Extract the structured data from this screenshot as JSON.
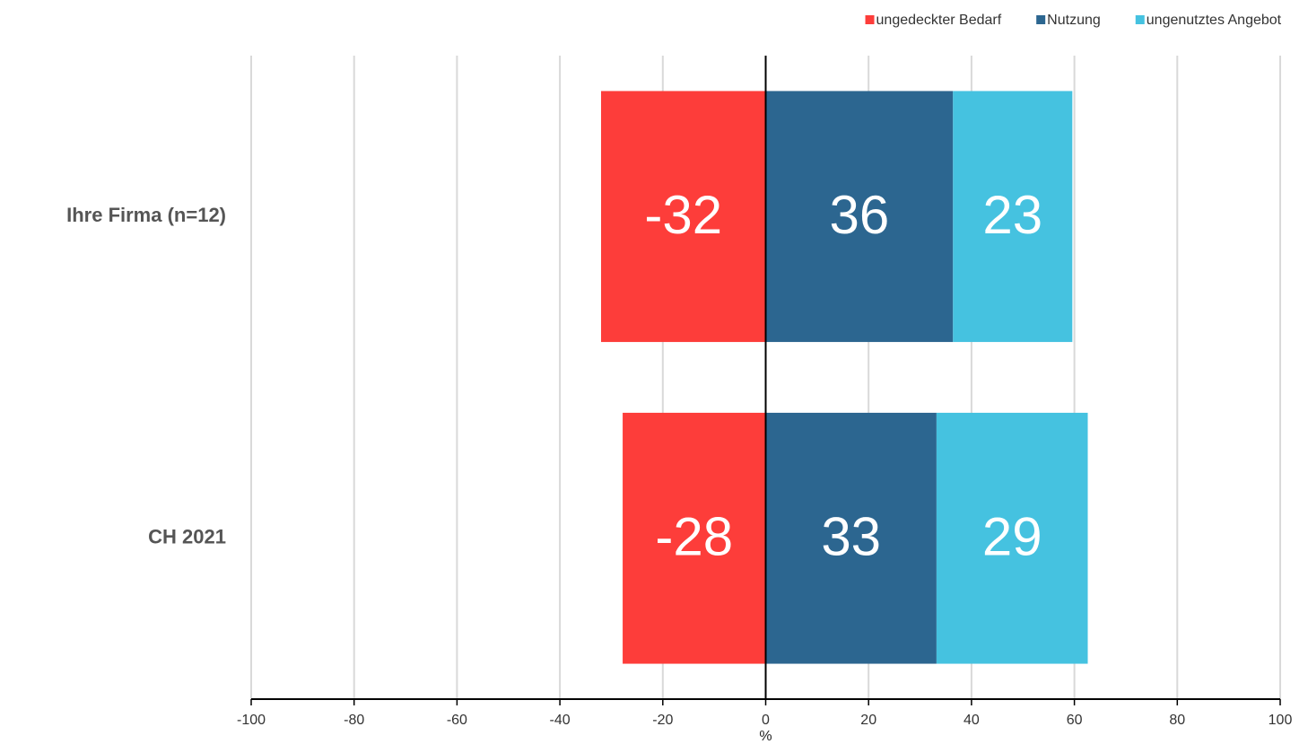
{
  "chart_data": {
    "type": "diverging-stacked-bar",
    "x_label": "%",
    "categories": [
      "Ihre Firma (n=12)",
      "CH 2021"
    ],
    "series": [
      {
        "name": "ungedeckter Bedarf",
        "color": "#fd3d3a",
        "values": [
          -32,
          -27.8
        ],
        "value_labels": [
          "-32",
          "-28"
        ]
      },
      {
        "name": "Nutzung",
        "color": "#2c6690",
        "values": [
          36.4,
          33.2
        ],
        "value_labels": [
          "36",
          "33"
        ]
      },
      {
        "name": "ungenutztes Angebot",
        "color": "#45c2e0",
        "values": [
          23.2,
          29.4
        ],
        "value_labels": [
          "23",
          "29"
        ]
      }
    ],
    "xlim": [
      -100,
      100
    ],
    "xticks": [
      -100,
      -80,
      -60,
      -40,
      -20,
      0,
      20,
      40,
      60,
      80,
      100
    ],
    "grid": true,
    "legend": "top-right"
  }
}
